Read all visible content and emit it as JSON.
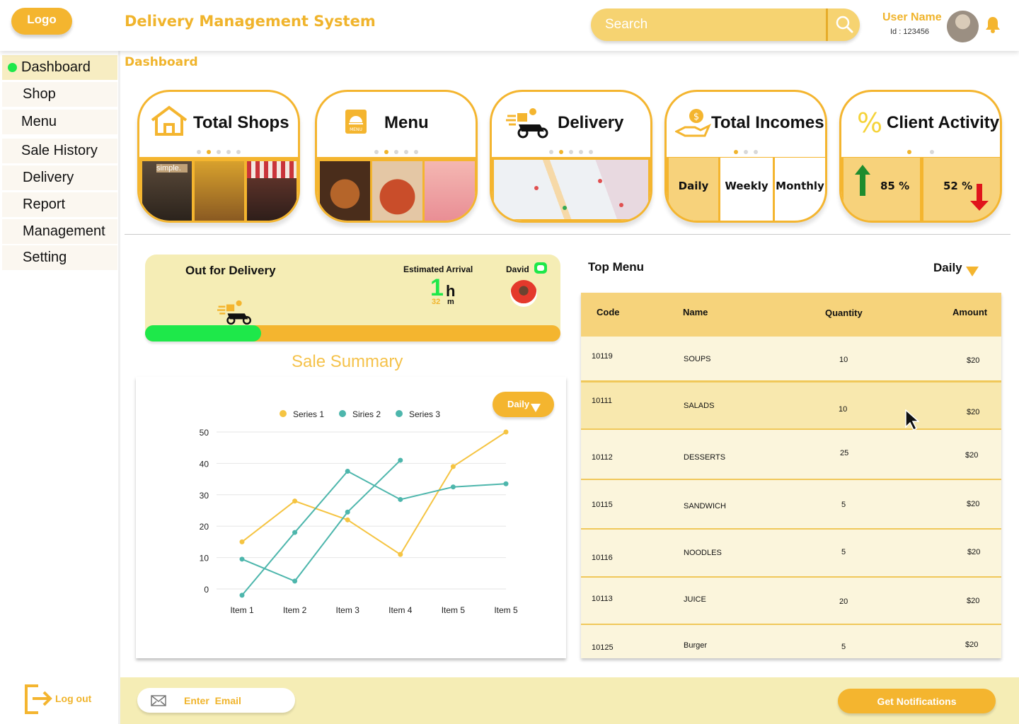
{
  "header": {
    "logo": "Logo",
    "title": "Delivery Management System",
    "search_placeholder": "Search",
    "user_name": "User Name",
    "user_id": "Id : 123456"
  },
  "sidebar": {
    "items": [
      {
        "label": "Dashboard",
        "active": true
      },
      {
        "label": "Shop"
      },
      {
        "label": "Menu"
      },
      {
        "label": "Sale History"
      },
      {
        "label": "Delivery"
      },
      {
        "label": "Report"
      },
      {
        "label": "Management"
      },
      {
        "label": "Setting"
      }
    ],
    "logout": "Log out"
  },
  "page_title": "Dashboard",
  "cards": {
    "shops": {
      "title": "Total Shops",
      "photo_sign": "simple."
    },
    "menu": {
      "title": "Menu",
      "icon_text": "MENU"
    },
    "delivery": {
      "title": "Delivery"
    },
    "incomes": {
      "title": "Total Incomes",
      "tabs": [
        "Daily",
        "Weekly",
        "Monthly"
      ]
    },
    "activity": {
      "title": "Client Activity",
      "up": "85 %",
      "down": "52 %"
    }
  },
  "delivery_status": {
    "title": "Out  for Delivery",
    "eta_label": "Estimated  Arrival",
    "eta_hours": "1",
    "eta_hours_unit": "h",
    "eta_minutes": "32",
    "eta_minutes_unit": "m",
    "driver": "David",
    "progress": 0.28
  },
  "sale_summary": {
    "title": "Sale Summary",
    "filter": "Daily"
  },
  "chart_data": {
    "type": "line",
    "categories": [
      "Item 1",
      "Item 2",
      "Item 3",
      "Item 4",
      "Item 5",
      "Item 5"
    ],
    "ylim": [
      0,
      50
    ],
    "yticks": [
      0,
      10,
      20,
      30,
      40,
      50
    ],
    "legend_position": "top",
    "grid": true,
    "series": [
      {
        "name": "Series 1",
        "color": "#F5C442",
        "values": [
          15,
          28,
          22,
          11,
          39,
          50
        ]
      },
      {
        "name": "Siries 2",
        "color": "#4DB6AC",
        "values": [
          -2,
          18,
          37.5,
          28.5,
          32.5,
          33.5
        ]
      },
      {
        "name": "Series 3",
        "color": "#4DB6AC",
        "values": [
          9.5,
          2.5,
          24.5,
          41,
          null,
          null
        ]
      }
    ]
  },
  "top_menu": {
    "title": "Top Menu",
    "filter": "Daily",
    "columns": [
      "Code",
      "Name",
      "Quantity",
      "Amount"
    ],
    "rows": [
      {
        "code": "10119",
        "name": "SOUPS",
        "qty": "10",
        "amount": "$20"
      },
      {
        "code": "10111",
        "name": "SALADS",
        "qty": "10",
        "amount": "$20"
      },
      {
        "code": "10112",
        "name": "DESSERTS",
        "qty": "25",
        "amount": "$20"
      },
      {
        "code": "10115",
        "name": "SANDWICH",
        "qty": "5",
        "amount": "$20"
      },
      {
        "code": "10116",
        "name": "NOODLES",
        "qty": "5",
        "amount": "$20"
      },
      {
        "code": "10113",
        "name": "JUICE",
        "qty": "20",
        "amount": "$20"
      },
      {
        "code": "10125",
        "name": "Burger",
        "qty": "5",
        "amount": "$20"
      }
    ]
  },
  "footer": {
    "email_placeholder": "Enter  Email",
    "notify_button": "Get Notifications"
  },
  "colors": {
    "accent": "#F4B52F",
    "accent_light": "#F5EDB5",
    "success": "#1EE84A",
    "teal": "#4DB6AC"
  }
}
